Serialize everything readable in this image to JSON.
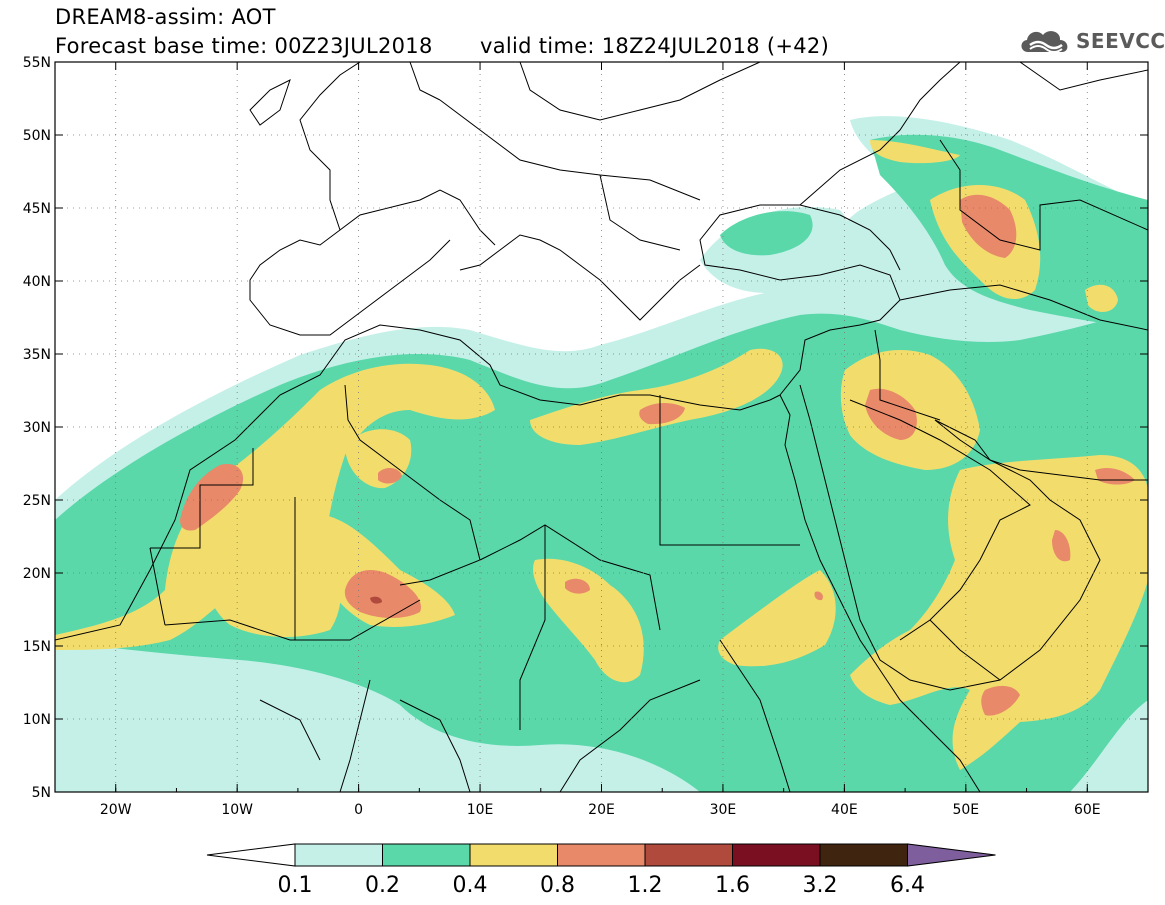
{
  "header": {
    "title_line1": "DREAM8-assim: AOT",
    "title_line2": "Forecast base time: 00Z23JUL2018",
    "valid_time": "valid time: 18Z24JUL2018 (+42)",
    "logo_text": "SEEVCCC",
    "logo_icon": "cloud-icon"
  },
  "map": {
    "lon_range": [
      -25,
      65
    ],
    "lat_range": [
      5,
      55
    ],
    "x_tick_labels": [
      "20W",
      "10W",
      "0",
      "10E",
      "20E",
      "30E",
      "40E",
      "50E",
      "60E"
    ],
    "y_tick_labels": [
      "5N",
      "10N",
      "15N",
      "20N",
      "25N",
      "30N",
      "35N",
      "40N",
      "45N",
      "50N",
      "55N"
    ],
    "grid": "dotted"
  },
  "colorbar": {
    "levels": [
      "0.1",
      "0.2",
      "0.4",
      "0.8",
      "1.2",
      "1.6",
      "3.2",
      "6.4"
    ],
    "colors": [
      "#c5f0e8",
      "#5ad8aa",
      "#f2dd6c",
      "#e8896a",
      "#b04a3c",
      "#7a0f22",
      "#3f2410",
      "#7f5e9e"
    ],
    "extend_low_color": "#ffffff",
    "extend_high_color": "#7f5e9e"
  }
}
